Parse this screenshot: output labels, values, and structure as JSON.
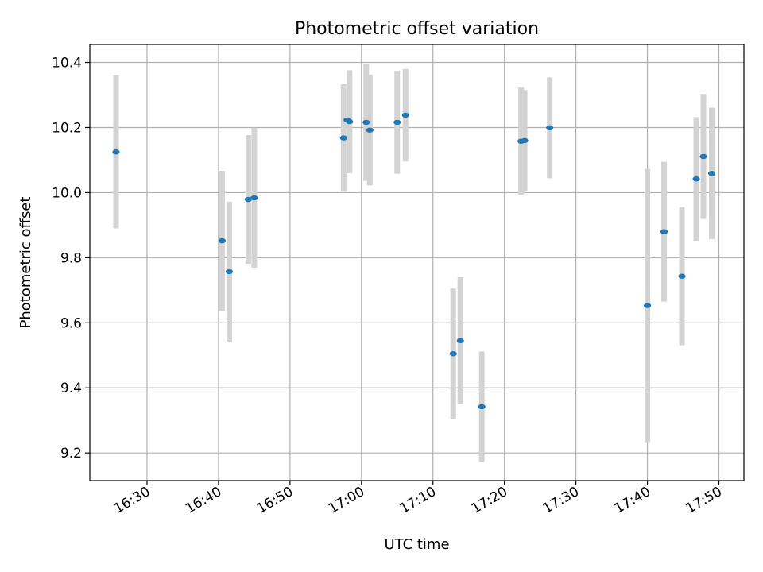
{
  "chart_data": {
    "type": "scatter",
    "title": "Photometric offset variation",
    "xlabel": "UTC time",
    "ylabel": "Photometric offset",
    "x_axis_type": "time",
    "xlim": [
      "16:22:00",
      "17:53:30"
    ],
    "ylim": [
      9.115,
      10.455
    ],
    "x_ticks": [
      "16:30",
      "16:40",
      "16:50",
      "17:00",
      "17:10",
      "17:20",
      "17:30",
      "17:40",
      "17:50"
    ],
    "y_ticks": [
      "9.2",
      "9.4",
      "9.6",
      "9.8",
      "10.0",
      "10.2",
      "10.4"
    ],
    "grid": true,
    "colors": {
      "marker": "#1f77b4",
      "errorbar": "#d3d3d3",
      "grid": "#b0b0b0"
    },
    "points": [
      {
        "x": "16:25:40",
        "y": 10.125,
        "yerr": 0.235
      },
      {
        "x": "16:40:30",
        "y": 9.852,
        "yerr": 0.215
      },
      {
        "x": "16:41:30",
        "y": 9.757,
        "yerr": 0.215
      },
      {
        "x": "16:44:10",
        "y": 9.979,
        "yerr": 0.198
      },
      {
        "x": "16:45:00",
        "y": 9.984,
        "yerr": 0.215
      },
      {
        "x": "16:57:30",
        "y": 10.168,
        "yerr": 0.165
      },
      {
        "x": "16:58:00",
        "y": 10.223,
        "yerr": 0.0
      },
      {
        "x": "16:58:20",
        "y": 10.218,
        "yerr": 0.158
      },
      {
        "x": "17:00:40",
        "y": 10.216,
        "yerr": 0.18
      },
      {
        "x": "17:01:10",
        "y": 10.192,
        "yerr": 0.17
      },
      {
        "x": "17:05:00",
        "y": 10.216,
        "yerr": 0.158
      },
      {
        "x": "17:06:10",
        "y": 10.238,
        "yerr": 0.142
      },
      {
        "x": "17:12:50",
        "y": 9.505,
        "yerr": 0.2
      },
      {
        "x": "17:13:50",
        "y": 9.545,
        "yerr": 0.195
      },
      {
        "x": "17:16:50",
        "y": 9.342,
        "yerr": 0.17
      },
      {
        "x": "17:22:20",
        "y": 10.158,
        "yerr": 0.165
      },
      {
        "x": "17:22:50",
        "y": 10.16,
        "yerr": 0.155
      },
      {
        "x": "17:26:20",
        "y": 10.199,
        "yerr": 0.155
      },
      {
        "x": "17:40:00",
        "y": 9.653,
        "yerr": 0.42
      },
      {
        "x": "17:42:20",
        "y": 9.88,
        "yerr": 0.215
      },
      {
        "x": "17:44:50",
        "y": 9.743,
        "yerr": 0.212
      },
      {
        "x": "17:46:50",
        "y": 10.042,
        "yerr": 0.19
      },
      {
        "x": "17:47:50",
        "y": 10.111,
        "yerr": 0.192
      },
      {
        "x": "17:49:00",
        "y": 10.059,
        "yerr": 0.202
      }
    ]
  }
}
